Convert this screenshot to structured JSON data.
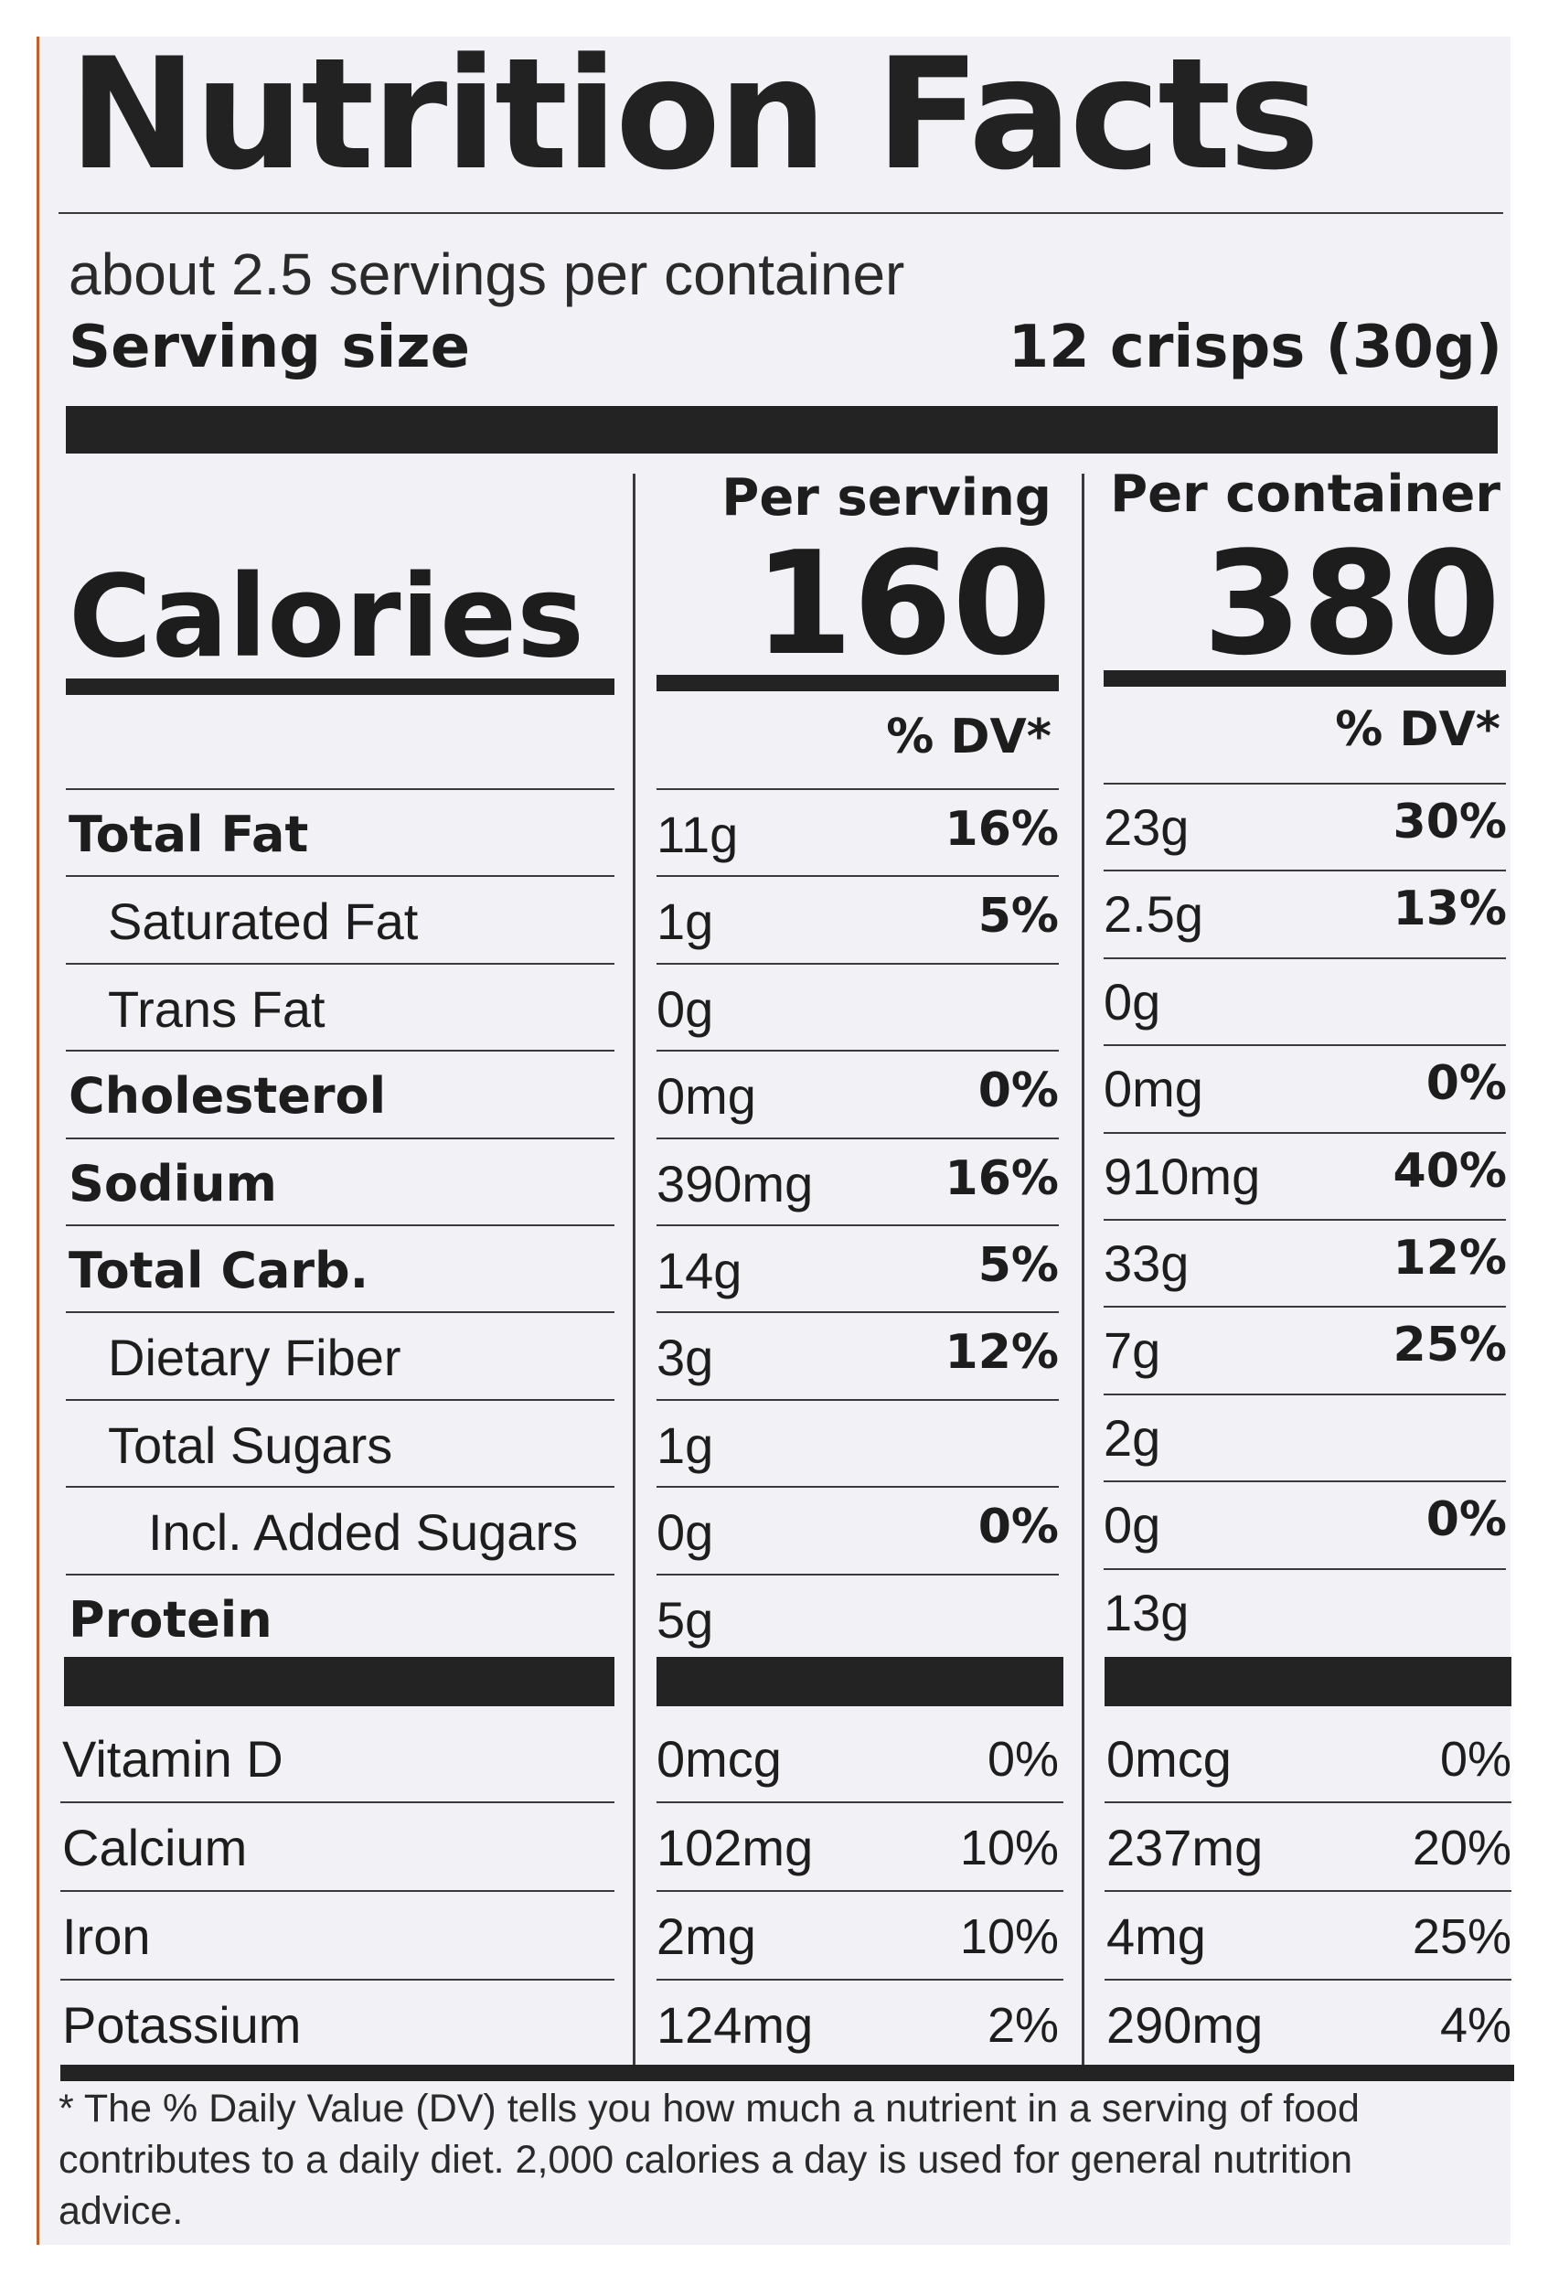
{
  "label": {
    "title": "Nutrition Facts",
    "servings_per_container": "about 2.5 servings per container",
    "serving_size_label": "Serving size",
    "serving_size_value": "12 crisps (30g)",
    "calories_label": "Calories",
    "per_serving_header": "Per serving",
    "per_container_header": "Per container",
    "calories_per_serving": "160",
    "calories_per_container": "380",
    "dv_header": "% DV*"
  },
  "nutrients": [
    {
      "name": "Total Fat",
      "bold": true,
      "indent": 0,
      "serving_amount": "11g",
      "serving_dv": "16%",
      "container_amount": "23g",
      "container_dv": "30%"
    },
    {
      "name": "Saturated Fat",
      "bold": false,
      "indent": 1,
      "serving_amount": "1g",
      "serving_dv": "5%",
      "container_amount": "2.5g",
      "container_dv": "13%"
    },
    {
      "name": "Trans Fat",
      "bold": false,
      "indent": 1,
      "serving_amount": "0g",
      "serving_dv": "",
      "container_amount": "0g",
      "container_dv": ""
    },
    {
      "name": "Cholesterol",
      "bold": true,
      "indent": 0,
      "serving_amount": "0mg",
      "serving_dv": "0%",
      "container_amount": "0mg",
      "container_dv": "0%"
    },
    {
      "name": "Sodium",
      "bold": true,
      "indent": 0,
      "serving_amount": "390mg",
      "serving_dv": "16%",
      "container_amount": "910mg",
      "container_dv": "40%"
    },
    {
      "name": "Total Carb.",
      "bold": true,
      "indent": 0,
      "serving_amount": "14g",
      "serving_dv": "5%",
      "container_amount": "33g",
      "container_dv": "12%"
    },
    {
      "name": "Dietary Fiber",
      "bold": false,
      "indent": 1,
      "serving_amount": "3g",
      "serving_dv": "12%",
      "container_amount": "7g",
      "container_dv": "25%"
    },
    {
      "name": "Total Sugars",
      "bold": false,
      "indent": 1,
      "serving_amount": "1g",
      "serving_dv": "",
      "container_amount": "2g",
      "container_dv": ""
    },
    {
      "name": "Incl. Added Sugars",
      "bold": false,
      "indent": 2,
      "serving_amount": "0g",
      "serving_dv": "0%",
      "container_amount": "0g",
      "container_dv": "0%"
    },
    {
      "name": "Protein",
      "bold": true,
      "indent": 0,
      "serving_amount": "5g",
      "serving_dv": "",
      "container_amount": "13g",
      "container_dv": ""
    }
  ],
  "vitamins": [
    {
      "name": "Vitamin D",
      "serving_amount": "0mcg",
      "serving_dv": "0%",
      "container_amount": "0mcg",
      "container_dv": "0%"
    },
    {
      "name": "Calcium",
      "serving_amount": "102mg",
      "serving_dv": "10%",
      "container_amount": "237mg",
      "container_dv": "20%"
    },
    {
      "name": "Iron",
      "serving_amount": "2mg",
      "serving_dv": "10%",
      "container_amount": "4mg",
      "container_dv": "25%"
    },
    {
      "name": "Potassium",
      "serving_amount": "124mg",
      "serving_dv": "2%",
      "container_amount": "290mg",
      "container_dv": "4%"
    }
  ],
  "footnote": "* The % Daily Value (DV) tells you how much a nutrient in a serving of food contributes to a daily diet. 2,000 calories a day is used for general nutrition advice.",
  "colors": {
    "ink": "#1d1d1d",
    "panel": "#f1f1f6",
    "accent_edge": "#c75e26"
  }
}
